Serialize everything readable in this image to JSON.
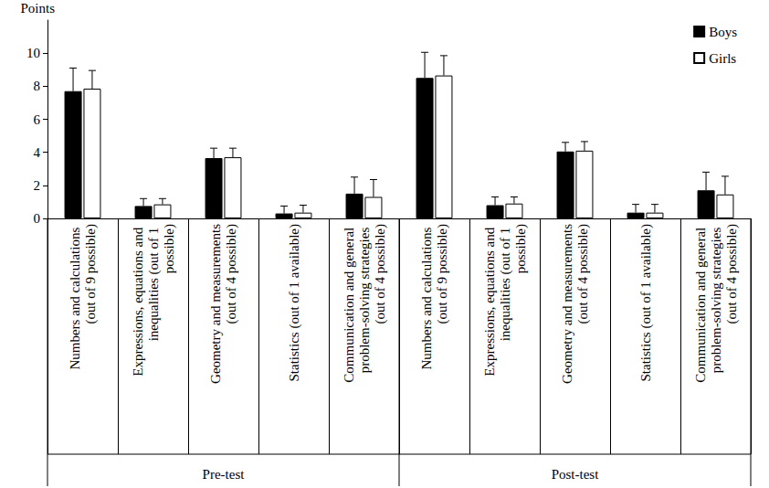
{
  "chart_data": {
    "type": "bar",
    "y_label": "Points",
    "categories": [
      "Numbers and calculations (out of 9 possible)",
      "Expressions, equations and inequalities (out of 1 possible)",
      "Geometry and measurements (out of 4 possible)",
      "Statistics (out of 1 available)",
      "Communication and general problem-solving strategies (out of 4 possible)",
      "Numbers and calculations (out of 9 possible)",
      "Expressions, equations and inequalities (out of 1 possible)",
      "Geometry and measurements (out of 4 possible)",
      "Statistics (out of 1 available)",
      "Communication and general problem-solving strategies (out of 4 possible)"
    ],
    "groups": [
      "Pre-test",
      "Pre-test",
      "Pre-test",
      "Pre-test",
      "Pre-test",
      "Post-test",
      "Post-test",
      "Post-test",
      "Post-test",
      "Post-test"
    ],
    "series": [
      {
        "name": "Boys",
        "color": "#000000",
        "values": [
          7.7,
          0.75,
          3.65,
          0.3,
          1.5,
          8.5,
          0.8,
          4.05,
          0.35,
          1.7
        ],
        "errors": [
          1.4,
          0.45,
          0.6,
          0.45,
          1.0,
          1.55,
          0.5,
          0.55,
          0.5,
          1.1
        ]
      },
      {
        "name": "Girls",
        "color": "#ffffff",
        "values": [
          7.85,
          0.85,
          3.7,
          0.35,
          1.3,
          8.65,
          0.9,
          4.1,
          0.35,
          1.45
        ],
        "errors": [
          1.1,
          0.35,
          0.55,
          0.45,
          1.05,
          1.2,
          0.4,
          0.55,
          0.5,
          1.1
        ]
      }
    ],
    "ylim": [
      0,
      12
    ],
    "yticks": [
      0,
      2,
      4,
      6,
      8,
      10
    ],
    "grid": false,
    "legend": "upper right"
  }
}
